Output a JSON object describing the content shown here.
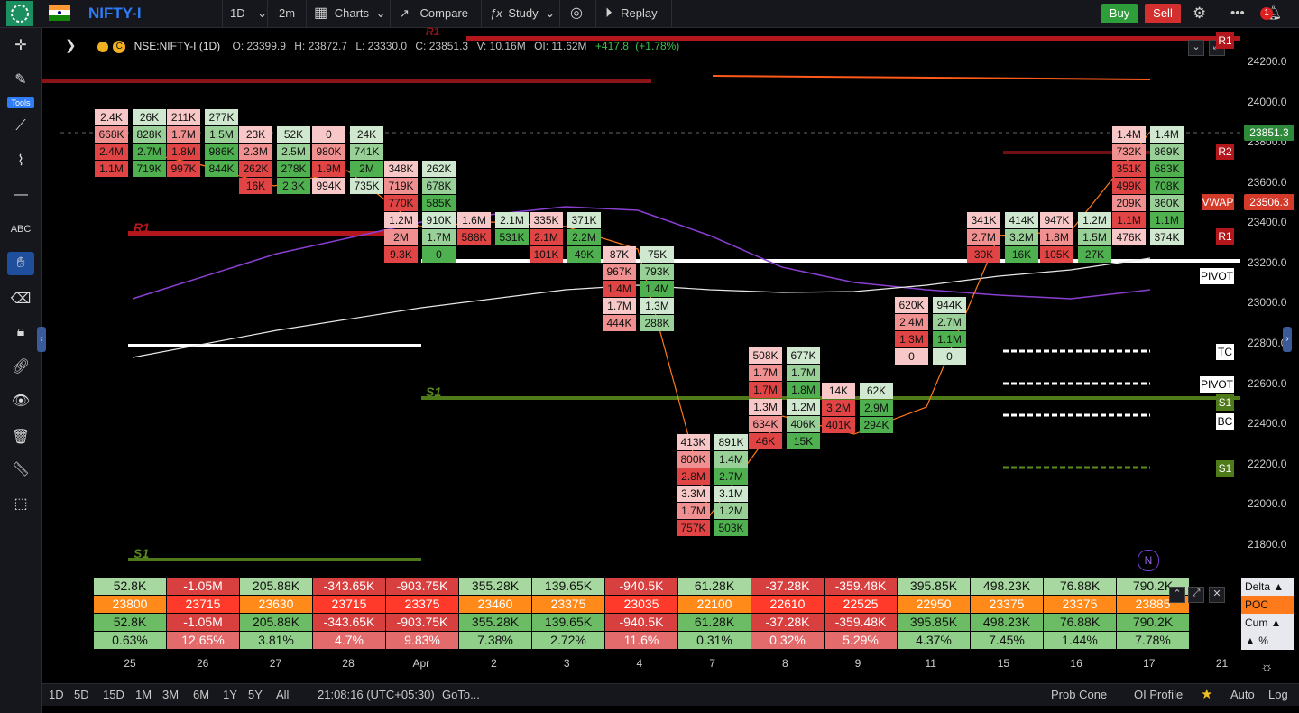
{
  "topbar": {
    "symbol": "NIFTY-I",
    "interval": "1D",
    "sub_interval": "2m",
    "charts_label": "Charts",
    "compare_label": "Compare",
    "study_label": "Study",
    "replay_label": "Replay",
    "buy_label": "Buy",
    "sell_label": "Sell",
    "notification_count": "1"
  },
  "leftbar": {
    "tools_label": "Tools"
  },
  "legend": {
    "symbol": "NSE:NIFTY-I (1D)",
    "o": "O: 23399.9",
    "h": "H: 23872.7",
    "l": "L: 23330.0",
    "c": "C: 23851.3",
    "v": "V: 10.16M",
    "oi": "OI: 11.62M",
    "chg": "+417.8",
    "pct": "(+1.78%)"
  },
  "price_axis": {
    "labels": [
      "24200.0",
      "24000.0",
      "23800.0",
      "23600.0",
      "23400.0",
      "23200.0",
      "23000.0",
      "22800.0",
      "22600.0",
      "22400.0",
      "22200.0",
      "22000.0",
      "21800.0"
    ],
    "current_price": "23851.3",
    "vwap_price": "23506.3",
    "vwap_label": "VWAP"
  },
  "level_tags": {
    "r1_top": "R1",
    "r2": "R2",
    "r1": "R1",
    "pivot1": "PIVOT",
    "tc": "TC",
    "pivot2": "PIVOT",
    "s1_a": "S1",
    "bc": "BC",
    "s1_b": "S1"
  },
  "chart_labels": {
    "r1": "R1",
    "r1_top": "R1",
    "s1": "S1",
    "s1_left": "S1",
    "n_badge": "N"
  },
  "footprint": {
    "d25_sell": [
      "2.4K",
      "668K",
      "2.4M",
      "1.1M"
    ],
    "d25_buy": [
      "26K",
      "828K",
      "2.7M",
      "719K"
    ],
    "d26_sell": [
      "211K",
      "1.7M",
      "1.8M",
      "997K"
    ],
    "d26_buy": [
      "277K",
      "1.5M",
      "986K",
      "844K"
    ],
    "d27_sell": [
      "23K",
      "2.3M",
      "262K",
      "16K"
    ],
    "d27_buy": [
      "52K",
      "2.5M",
      "278K",
      "2.3K"
    ],
    "d28_sell": [
      "0",
      "980K",
      "1.9M",
      "994K"
    ],
    "d28_buy": [
      "24K",
      "741K",
      "2M",
      "735K"
    ],
    "apr_sell": [
      "348K",
      "719K",
      "770K",
      "1.2M",
      "2M",
      "9.3K"
    ],
    "apr_buy": [
      "262K",
      "678K",
      "585K",
      "910K",
      "1.7M",
      "0"
    ],
    "d2_sell": [
      "1.6M",
      "588K"
    ],
    "d2_buy": [
      "2.1M",
      "531K"
    ],
    "d3_sell": [
      "335K",
      "2.1M",
      "101K"
    ],
    "d3_buy": [
      "371K",
      "2.2M",
      "49K"
    ],
    "d4_sell": [
      "87K",
      "967K",
      "1.4M",
      "1.7M",
      "444K"
    ],
    "d4_buy": [
      "75K",
      "793K",
      "1.4M",
      "1.3M",
      "288K"
    ],
    "d7_sell": [
      "413K",
      "800K",
      "2.8M",
      "3.3M",
      "1.7M",
      "757K"
    ],
    "d7_buy": [
      "891K",
      "1.4M",
      "2.7M",
      "3.1M",
      "1.2M",
      "503K"
    ],
    "d8_sell": [
      "508K",
      "1.7M",
      "1.7M",
      "1.3M",
      "634K",
      "46K"
    ],
    "d8_buy": [
      "677K",
      "1.7M",
      "1.8M",
      "1.2M",
      "406K",
      "15K"
    ],
    "d9_sell": [
      "14K",
      "3.2M",
      "401K"
    ],
    "d9_buy": [
      "62K",
      "2.9M",
      "294K"
    ],
    "d11_sell": [
      "620K",
      "2.4M",
      "1.3M",
      "0"
    ],
    "d11_buy": [
      "944K",
      "2.7M",
      "1.1M",
      "0"
    ],
    "d15_sell": [
      "341K",
      "2.7M",
      "30K"
    ],
    "d15_buy": [
      "414K",
      "3.2M",
      "16K"
    ],
    "d16_sell": [
      "947K",
      "1.8M",
      "105K"
    ],
    "d16_buy": [
      "1.2M",
      "1.5M",
      "27K"
    ],
    "d17_sell": [
      "1.4M",
      "732K",
      "351K",
      "499K",
      "209K",
      "1.1M",
      "476K"
    ],
    "d17_buy": [
      "1.4M",
      "869K",
      "683K",
      "708K",
      "360K",
      "1.1M",
      "374K"
    ]
  },
  "stats_table": {
    "row_labels": [
      "Delta ▲",
      "POC",
      "Cum ▲",
      "▲ %"
    ],
    "delta": [
      "52.8K",
      "-1.05M",
      "205.88K",
      "-343.65K",
      "-903.75K",
      "355.28K",
      "139.65K",
      "-940.5K",
      "61.28K",
      "-37.28K",
      "-359.48K",
      "395.85K",
      "498.23K",
      "76.88K",
      "790.2K"
    ],
    "poc": [
      "23800",
      "23715",
      "23630",
      "23715",
      "23375",
      "23460",
      "23375",
      "23035",
      "22100",
      "22610",
      "22525",
      "22950",
      "23375",
      "23375",
      "23885"
    ],
    "cum": [
      "52.8K",
      "-1.05M",
      "205.88K",
      "-343.65K",
      "-903.75K",
      "355.28K",
      "139.65K",
      "-940.5K",
      "61.28K",
      "-37.28K",
      "-359.48K",
      "395.85K",
      "498.23K",
      "76.88K",
      "790.2K"
    ],
    "pct": [
      "0.63%",
      "12.65%",
      "3.81%",
      "4.7%",
      "9.83%",
      "7.38%",
      "2.72%",
      "11.6%",
      "0.31%",
      "0.32%",
      "5.29%",
      "4.37%",
      "7.45%",
      "1.44%",
      "7.78%"
    ]
  },
  "dates": [
    "25",
    "26",
    "27",
    "28",
    "Apr",
    "2",
    "3",
    "4",
    "7",
    "8",
    "9",
    "11",
    "15",
    "16",
    "17",
    "21"
  ],
  "bottombar": {
    "ranges": [
      "1D",
      "5D",
      "15D",
      "1M",
      "3M",
      "6M",
      "1Y",
      "5Y",
      "All"
    ],
    "time": "21:08:16 (UTC+05:30)",
    "goto": "GoTo...",
    "prob_cone": "Prob Cone",
    "oi_profile": "OI Profile",
    "auto": "Auto",
    "log": "Log"
  },
  "colors": {
    "buy": "#2e9e3a",
    "sell": "#d32f2f",
    "poc_bg": "#ff7a1a",
    "pivot_white": "#ffffff",
    "s1_green": "#5a8a1e",
    "r1_red": "#b3161b",
    "vwap_purple": "#8a3fd1",
    "symbol_blue": "#2f7df6"
  }
}
